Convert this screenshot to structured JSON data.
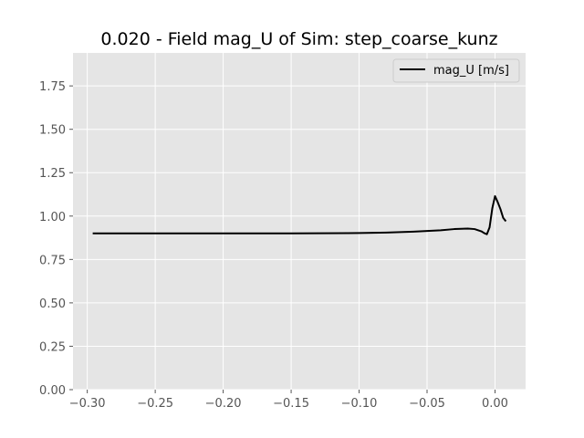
{
  "chart_data": {
    "type": "line",
    "title": "0.020 - Field mag_U of Sim: step_coarse_kunz",
    "xlabel": "",
    "ylabel": "",
    "xlim": [
      -0.3105,
      0.0225
    ],
    "ylim": [
      0.0,
      1.94
    ],
    "xticks": [
      -0.3,
      -0.25,
      -0.2,
      -0.15,
      -0.1,
      -0.05,
      0.0
    ],
    "xtick_labels": [
      "−0.30",
      "−0.25",
      "−0.20",
      "−0.15",
      "−0.10",
      "−0.05",
      "0.00"
    ],
    "yticks": [
      0.0,
      0.25,
      0.5,
      0.75,
      1.0,
      1.25,
      1.5,
      1.75
    ],
    "ytick_labels": [
      "0.00",
      "0.25",
      "0.50",
      "0.75",
      "1.00",
      "1.25",
      "1.50",
      "1.75"
    ],
    "grid": true,
    "legend_position": "top-right",
    "series": [
      {
        "name": "mag_U [m/s]",
        "color": "#000000",
        "x": [
          -0.296,
          -0.25,
          -0.2,
          -0.15,
          -0.1,
          -0.08,
          -0.06,
          -0.04,
          -0.03,
          -0.02,
          -0.015,
          -0.01,
          -0.008,
          -0.006,
          -0.004,
          -0.002,
          0.0,
          0.002,
          0.004,
          0.006,
          0.008
        ],
        "y": [
          0.9,
          0.9,
          0.9,
          0.9,
          0.902,
          0.905,
          0.91,
          0.918,
          0.925,
          0.928,
          0.925,
          0.912,
          0.902,
          0.895,
          0.935,
          1.045,
          1.115,
          1.08,
          1.04,
          0.99,
          0.97
        ]
      }
    ]
  }
}
